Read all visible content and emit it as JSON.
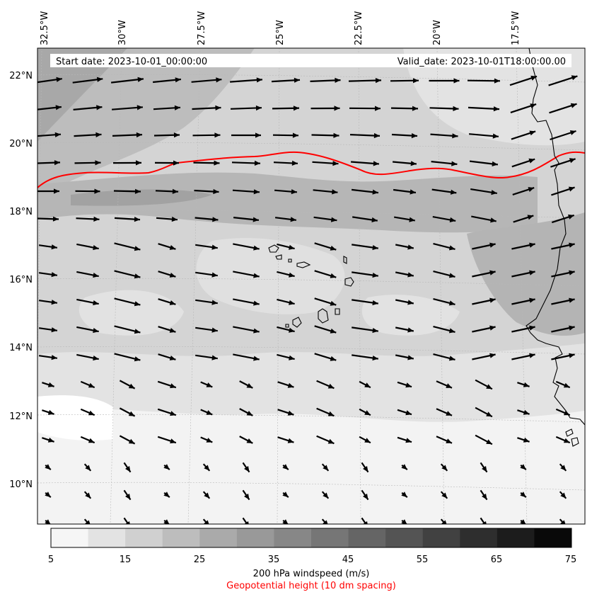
{
  "header": {
    "start_date": "Start date: 2023-10-01_00:00:00",
    "valid_date": "Valid_date: 2023-10-01T18:00:00.00"
  },
  "lon_labels": [
    "32.5°W",
    "30°W",
    "27.5°W",
    "25°W",
    "22.5°W",
    "20°W",
    "17.5°W"
  ],
  "lat_labels": [
    "22°N",
    "20°N",
    "18°N",
    "16°N",
    "14°N",
    "12°N",
    "10°N"
  ],
  "colorbar": {
    "ticks": [
      "5",
      "15",
      "25",
      "35",
      "45",
      "55",
      "65",
      "75"
    ],
    "levels": [
      5,
      10,
      15,
      20,
      25,
      30,
      35,
      40,
      45,
      50,
      55,
      60,
      65,
      70,
      75
    ],
    "colors": [
      "#f6f6f6",
      "#e3e3e3",
      "#d0d0d0",
      "#bdbdbd",
      "#aaaaaa",
      "#999999",
      "#878787",
      "#767676",
      "#656565",
      "#545454",
      "#414141",
      "#2e2e2e",
      "#1c1c1c",
      "#090909"
    ],
    "label": "200 hPa windspeed (m/s)",
    "sublabel": "Geopotential height (10 dm spacing)"
  },
  "colors": {
    "contour": "#ff0000",
    "arrow": "#000000",
    "coast": "#000000"
  }
}
